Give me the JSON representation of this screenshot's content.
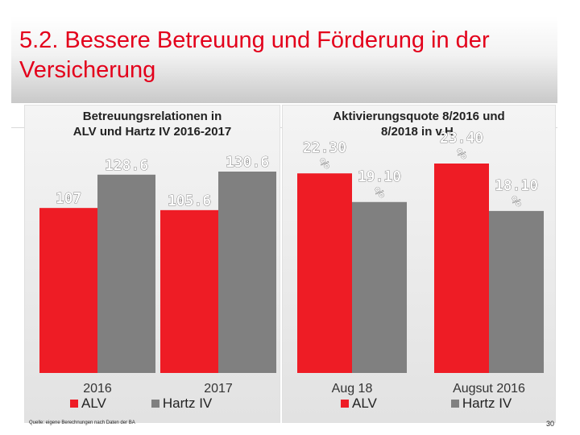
{
  "slide": {
    "title": "5.2. Bessere Betreuung und Förderung in der\n     Versicherung",
    "source": "Quelle: eigene Berechnungen nach Daten der BA",
    "page_number": "30"
  },
  "colors": {
    "alv": "#ee1c25",
    "hartz": "#808080",
    "title": "#e3001b"
  },
  "chart_data": [
    {
      "type": "bar",
      "title": "Betreuungsrelationen in\nALV und Hartz IV  2016-2017",
      "categories": [
        "2016",
        "2017"
      ],
      "series": [
        {
          "name": "ALV",
          "values": [
            107,
            105.6
          ],
          "labels": [
            "107",
            "105.6"
          ]
        },
        {
          "name": "Hartz IV",
          "values": [
            128.6,
            130.6
          ],
          "labels": [
            "128.6",
            "130.6"
          ]
        }
      ],
      "ylim": [
        0,
        140
      ],
      "legend": [
        "ALV",
        "Hartz IV"
      ]
    },
    {
      "type": "bar",
      "title": "Aktivierungsquote 8/2016 und\n8/2018 in v.H.",
      "categories": [
        "Aug 18",
        "Augsut 2016"
      ],
      "series": [
        {
          "name": "ALV",
          "values": [
            22.3,
            23.4
          ],
          "labels": [
            "22.30\n%",
            "23.40\n%"
          ]
        },
        {
          "name": "Hartz IV",
          "values": [
            19.1,
            18.1
          ],
          "labels": [
            "19.10\n%",
            "18.10\n%"
          ]
        }
      ],
      "ylim": [
        0,
        24.3
      ],
      "legend": [
        "ALV",
        "Hartz IV"
      ]
    }
  ]
}
